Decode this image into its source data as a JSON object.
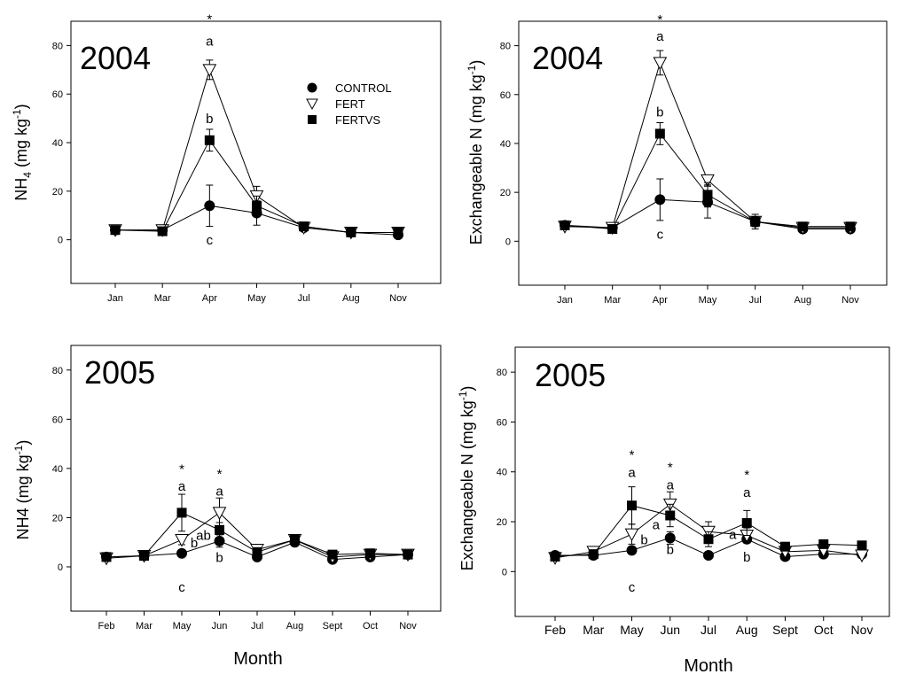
{
  "chart_data": [
    {
      "type": "line",
      "title": "2004",
      "ylabel": "NH4 (mg kg-1)",
      "ylabel_main": "NH",
      "ylabel_sub": "4",
      "ylabel_unit": " (mg kg",
      "ylabel_sup": "-1",
      "ylabel_close": ")",
      "xlabel": "",
      "categories": [
        "Jan",
        "Mar",
        "Apr",
        "May",
        "Jul",
        "Aug",
        "Nov"
      ],
      "ylim": [
        -18,
        90
      ],
      "yticks": [
        0,
        20,
        40,
        60,
        80
      ],
      "series": [
        {
          "name": "CONTROL",
          "values": [
            4,
            4,
            14,
            11,
            5,
            3,
            2
          ],
          "err": [
            0.8,
            0.8,
            8.5,
            5,
            1,
            0.5,
            0.5
          ]
        },
        {
          "name": "FERT",
          "values": [
            4,
            4,
            70,
            18,
            5,
            3,
            3
          ],
          "err": [
            0.8,
            0.8,
            4,
            4,
            1,
            0.5,
            0.5
          ]
        },
        {
          "name": "FERTVS",
          "values": [
            4,
            3.5,
            41,
            14,
            5.5,
            3,
            3
          ],
          "err": [
            0.8,
            0.8,
            4.5,
            4,
            1,
            0.5,
            0.5
          ]
        }
      ],
      "annotations": [
        {
          "x": "Apr",
          "y": 89,
          "text": "*"
        },
        {
          "x": "Apr",
          "y": 80,
          "text": "a"
        },
        {
          "x": "Apr",
          "y": 48,
          "text": "b"
        },
        {
          "x": "Apr",
          "y": -2,
          "text": "c"
        }
      ],
      "legend": {
        "position": "top-right",
        "entries": [
          "CONTROL",
          "FERT",
          "FERTVS"
        ]
      }
    },
    {
      "type": "line",
      "title": "2004",
      "ylabel": "Exchangeable N (mg kg-1)",
      "ylabel_main": "Exchangeable N",
      "ylabel_sub": "",
      "ylabel_unit": " (mg kg",
      "ylabel_sup": "-1",
      "ylabel_close": ")",
      "xlabel": "",
      "categories": [
        "Jan",
        "Mar",
        "Apr",
        "May",
        "Jul",
        "Aug",
        "Nov"
      ],
      "ylim": [
        -18,
        90
      ],
      "yticks": [
        0,
        20,
        40,
        60,
        80
      ],
      "series": [
        {
          "name": "CONTROL",
          "values": [
            6.5,
            5.5,
            17,
            16,
            8,
            5,
            5
          ],
          "err": [
            0.8,
            0.8,
            8.5,
            6.5,
            3,
            0.5,
            0.5
          ]
        },
        {
          "name": "FERT",
          "values": [
            6,
            5.5,
            73,
            25,
            8,
            5.5,
            5.5
          ],
          "err": [
            0.8,
            0.8,
            5,
            2,
            2,
            0.5,
            0.5
          ]
        },
        {
          "name": "FERTVS",
          "values": [
            6.5,
            5,
            44,
            19,
            8,
            6,
            6
          ],
          "err": [
            0.8,
            0.8,
            4.5,
            5,
            2,
            0.5,
            0.5
          ]
        }
      ],
      "annotations": [
        {
          "x": "Apr",
          "y": 89,
          "text": "*"
        },
        {
          "x": "Apr",
          "y": 82,
          "text": "a"
        },
        {
          "x": "Apr",
          "y": 51,
          "text": "b"
        },
        {
          "x": "Apr",
          "y": 1,
          "text": "c"
        }
      ]
    },
    {
      "type": "line",
      "title": "2005",
      "ylabel": "NH4 (mg kg-1)",
      "ylabel_main": "NH4",
      "ylabel_sub": "",
      "ylabel_unit": " (mg kg",
      "ylabel_sup": "-1",
      "ylabel_close": ")",
      "xlabel": "",
      "categories": [
        "Feb",
        "Mar",
        "May",
        "Jun",
        "Jul",
        "Aug",
        "Sept",
        "Oct",
        "Nov"
      ],
      "ylim": [
        -18,
        90
      ],
      "yticks": [
        0,
        20,
        40,
        60,
        80
      ],
      "series": [
        {
          "name": "CONTROL",
          "values": [
            4,
            4.5,
            5.5,
            10.5,
            4,
            10,
            3,
            4,
            5
          ],
          "err": [
            0.8,
            0.8,
            1,
            2.5,
            1,
            1.5,
            0.5,
            0.5,
            0.5
          ]
        },
        {
          "name": "FERT",
          "values": [
            3.5,
            4.5,
            11,
            22,
            7,
            11,
            4,
            5,
            5
          ],
          "err": [
            0.8,
            0.8,
            2,
            6,
            1,
            2,
            0.5,
            0.5,
            0.5
          ]
        },
        {
          "name": "FERTVS",
          "values": [
            4,
            4.5,
            22,
            15,
            6,
            11,
            5,
            5.5,
            5
          ],
          "err": [
            0.8,
            0.8,
            7.5,
            3,
            1,
            2,
            0.5,
            0.5,
            0.5
          ]
        }
      ],
      "annotations": [
        {
          "x": "May",
          "y": 38,
          "text": "*"
        },
        {
          "x": "May",
          "y": 31,
          "text": "a"
        },
        {
          "x": "May",
          "y": 8,
          "text": "b",
          "dx": 14
        },
        {
          "x": "May",
          "y": -10,
          "text": "c"
        },
        {
          "x": "Jun",
          "y": 36,
          "text": "*"
        },
        {
          "x": "Jun",
          "y": 29,
          "text": "a"
        },
        {
          "x": "Jun",
          "y": 11,
          "text": "ab",
          "dx": -18
        },
        {
          "x": "Jun",
          "y": 2,
          "text": "b"
        }
      ]
    },
    {
      "type": "line",
      "title": "2005",
      "ylabel": "Exchangeable N (mg kg-1)",
      "ylabel_main": "Exchangeable N",
      "ylabel_sub": "",
      "ylabel_unit": " (mg kg",
      "ylabel_sup": "-1",
      "ylabel_close": ")",
      "xlabel": "Month",
      "categories": [
        "Feb",
        "Mar",
        "May",
        "Jun",
        "Jul",
        "Aug",
        "Sept",
        "Oct",
        "Nov"
      ],
      "ylim": [
        -18,
        90
      ],
      "yticks": [
        0,
        20,
        40,
        60,
        80
      ],
      "series": [
        {
          "name": "CONTROL",
          "values": [
            6.5,
            6.5,
            8.5,
            13.5,
            6.5,
            13,
            6,
            7,
            7
          ],
          "err": [
            0.8,
            0.8,
            1,
            2.5,
            1,
            1.5,
            0.5,
            0.5,
            0.5
          ]
        },
        {
          "name": "FERT",
          "values": [
            5.5,
            8,
            15,
            27,
            16,
            14.5,
            8,
            8.5,
            6.5
          ],
          "err": [
            0.8,
            0.8,
            4,
            5,
            4,
            3,
            0.5,
            0.5,
            0.5
          ]
        },
        {
          "name": "FERTVS",
          "values": [
            6,
            7,
            26.5,
            22.5,
            13,
            19.5,
            10,
            11,
            10.5
          ],
          "err": [
            0.8,
            0.8,
            7.5,
            4.5,
            3,
            5,
            0.5,
            0.5,
            0.5
          ]
        }
      ],
      "annotations": [
        {
          "x": "May",
          "y": 45,
          "text": "*"
        },
        {
          "x": "May",
          "y": 38,
          "text": "a"
        },
        {
          "x": "May",
          "y": 11,
          "text": "b",
          "dx": 14
        },
        {
          "x": "May",
          "y": -8,
          "text": "c"
        },
        {
          "x": "Jun",
          "y": 40,
          "text": "*"
        },
        {
          "x": "Jun",
          "y": 33,
          "text": "a"
        },
        {
          "x": "Jun",
          "y": 17,
          "text": "a",
          "dx": -16
        },
        {
          "x": "Jun",
          "y": 7,
          "text": "b"
        },
        {
          "x": "Aug",
          "y": 37,
          "text": "*"
        },
        {
          "x": "Aug",
          "y": 30,
          "text": "a"
        },
        {
          "x": "Aug",
          "y": 13,
          "text": "a",
          "dx": -16
        },
        {
          "x": "Aug",
          "y": 4,
          "text": "b"
        }
      ]
    }
  ],
  "shared_xlabel_left": "Month",
  "legend_symbols": {
    "CONTROL": "filled-circle",
    "FERT": "open-triangle-down",
    "FERTVS": "filled-square"
  }
}
